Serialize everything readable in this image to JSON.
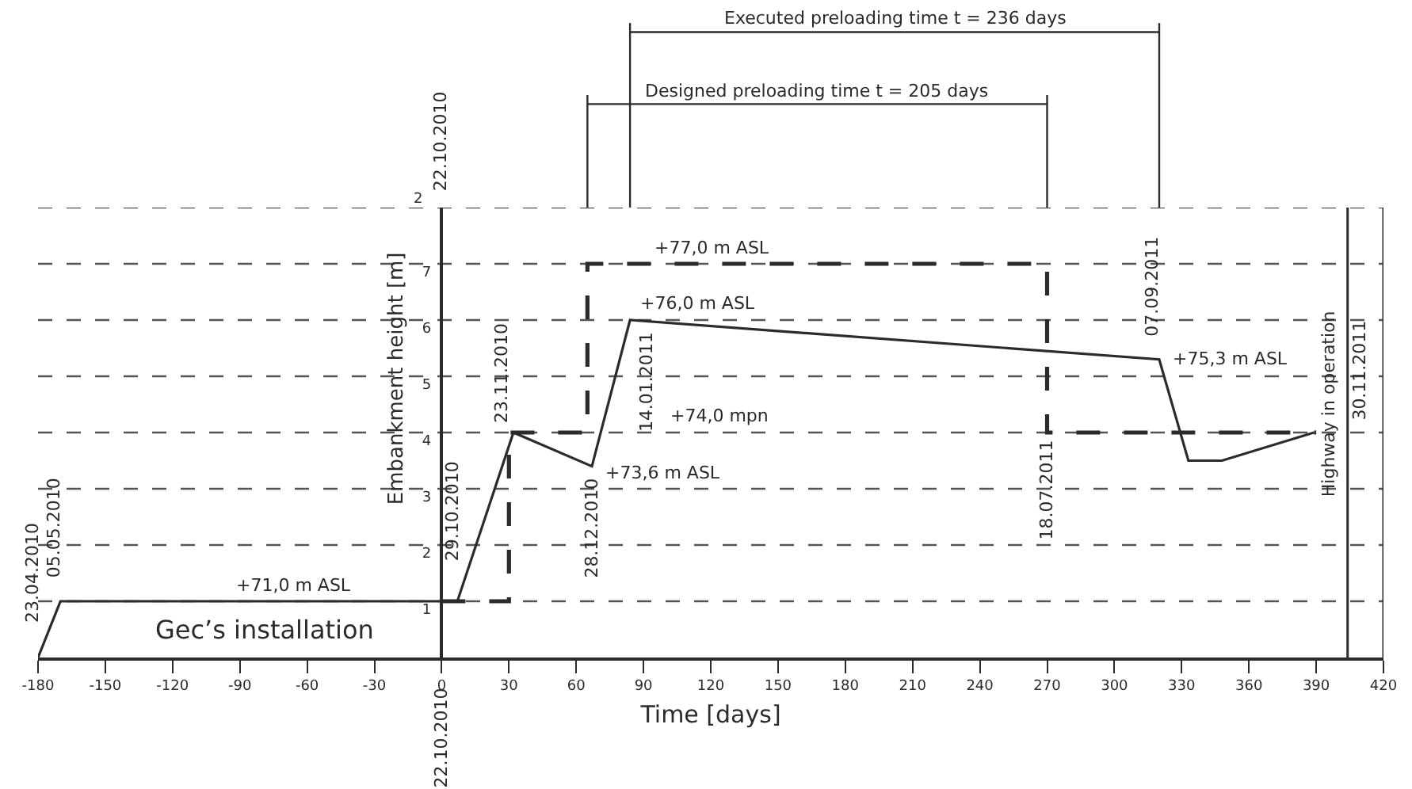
{
  "chart_data": {
    "type": "line",
    "xlabel": "Time [days]",
    "ylabel": "Embankment height [m]",
    "series": [
      {
        "color": "#2b2b2b",
        "line_style": "solid",
        "x": [
          -180,
          -170,
          7,
          32,
          67,
          84,
          320,
          333,
          348,
          389
        ],
        "values": [
          0,
          1,
          1,
          4,
          3.4,
          6,
          5.3,
          3.5,
          3.5,
          4
        ]
      },
      {
        "color": "#2b2b2b",
        "line_style": "dashed",
        "x": [
          0,
          30,
          30,
          65,
          65,
          270,
          270,
          390
        ],
        "values": [
          1,
          1,
          4,
          4,
          7,
          7,
          4,
          4
        ]
      }
    ],
    "xlim": [
      -180,
      420
    ],
    "ylim": [
      0,
      8
    ],
    "xticks": [
      -180,
      -150,
      -120,
      -90,
      -60,
      -30,
      0,
      30,
      60,
      90,
      120,
      150,
      180,
      210,
      240,
      270,
      300,
      330,
      360,
      390,
      420
    ],
    "yticks": [
      1,
      2,
      3,
      4,
      5,
      6,
      7,
      {
        "value": 8,
        "label": null
      }
    ],
    "grid": "y",
    "ref_lines": [
      {
        "axis": "x",
        "value": 404,
        "color": "#2b2b2b",
        "line_style": "solid"
      }
    ],
    "annotations": [
      "22.10.2010",
      "22.10.2010",
      "Gec’s installation",
      "+74,0 mpn",
      "Designed preloading time t = 205 days",
      "Executed preloading time t = 236 days",
      "2",
      {
        "text": "23.04.2010",
        "x": -180,
        "y": 0
      },
      {
        "text": "05.05.2010",
        "x": -170,
        "y": 1
      },
      {
        "text": "29.10.2010",
        "x": 7,
        "y": 1
      },
      {
        "text": "23.11.2010",
        "x": 32,
        "y": 4
      },
      {
        "text": "28.12.2010",
        "x": 67,
        "y": 3.4
      },
      {
        "text": "14.01.2011",
        "x": 84,
        "y": 6
      },
      {
        "text": "18.07.2011",
        "x": 270,
        "y": 4
      },
      {
        "text": "07.09.2011",
        "x": 320,
        "y": 5.3
      },
      {
        "text": "30.11.2011",
        "x": 404,
        "y": 5.1
      },
      {
        "text": "Highway in operation",
        "x": 404,
        "y": 4.5
      },
      {
        "text": "+71,0 m ASL",
        "x": -66,
        "y": 1
      },
      {
        "text": "+77,0 m ASL",
        "x": 121,
        "y": 7
      },
      {
        "text": "+76,0 m ASL",
        "x": 84,
        "y": 6
      },
      {
        "text": "+73,6 m ASL",
        "x": 67,
        "y": 3.4
      },
      {
        "text": "+75,3 m ASL",
        "x": 320,
        "y": 5.3
      }
    ]
  }
}
